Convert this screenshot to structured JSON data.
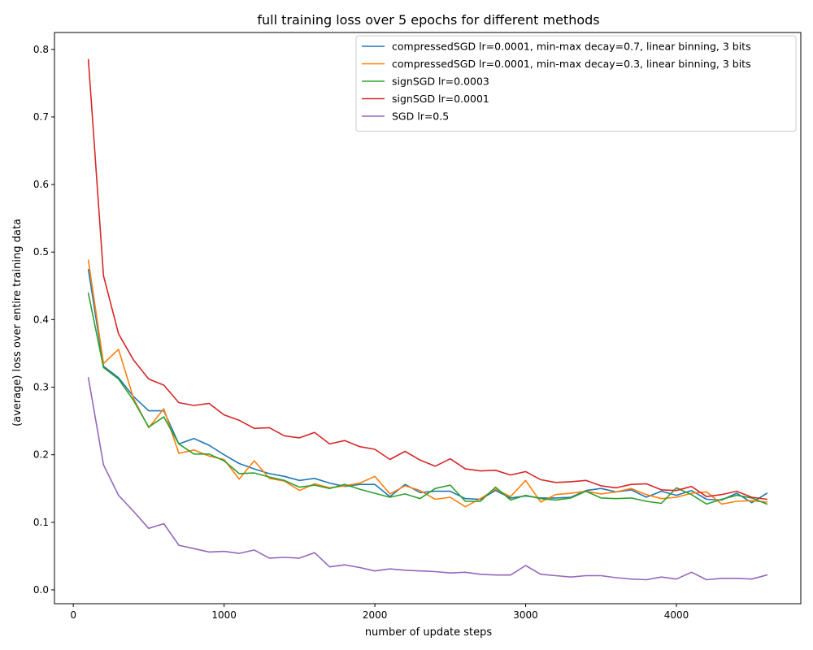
{
  "chart_data": {
    "type": "line",
    "title": "full training loss over 5 epochs for different methods",
    "xlabel": "number of update steps",
    "ylabel": "(average) loss over entire training data",
    "xlim": [
      -125,
      4825
    ],
    "ylim": [
      -0.0205,
      0.825
    ],
    "xticks": [
      0,
      1000,
      2000,
      3000,
      4000
    ],
    "xtick_labels": [
      "0",
      "1000",
      "2000",
      "3000",
      "4000"
    ],
    "yticks": [
      0.0,
      0.1,
      0.2,
      0.3,
      0.4,
      0.5,
      0.6,
      0.7,
      0.8
    ],
    "ytick_labels": [
      "0.0",
      "0.1",
      "0.2",
      "0.3",
      "0.4",
      "0.5",
      "0.6",
      "0.7",
      "0.8"
    ],
    "grid": false,
    "legend_position": "top-right",
    "x": [
      100,
      200,
      300,
      400,
      500,
      600,
      700,
      800,
      900,
      1000,
      1100,
      1200,
      1300,
      1400,
      1500,
      1600,
      1700,
      1800,
      1900,
      2000,
      2100,
      2200,
      2300,
      2400,
      2500,
      2600,
      2700,
      2800,
      2900,
      3000,
      3100,
      3200,
      3300,
      3400,
      3500,
      3600,
      3700,
      3800,
      3900,
      4000,
      4100,
      4200,
      4300,
      4400,
      4500,
      4600
    ],
    "series": [
      {
        "name": "compressedSGD lr=0.0001, min-max decay=0.7, linear binning, 3 bits",
        "color": "#1f77b4",
        "values": [
          0.474,
          0.331,
          0.314,
          0.286,
          0.265,
          0.265,
          0.216,
          0.224,
          0.214,
          0.2,
          0.187,
          0.179,
          0.172,
          0.168,
          0.162,
          0.165,
          0.158,
          0.153,
          0.156,
          0.156,
          0.138,
          0.156,
          0.144,
          0.146,
          0.146,
          0.135,
          0.134,
          0.147,
          0.136,
          0.139,
          0.136,
          0.136,
          0.137,
          0.147,
          0.15,
          0.145,
          0.148,
          0.137,
          0.146,
          0.14,
          0.147,
          0.134,
          0.133,
          0.143,
          0.129,
          0.143
        ]
      },
      {
        "name": "compressedSGD lr=0.0001, min-max decay=0.3, linear binning, 3 bits",
        "color": "#ff7f0e",
        "values": [
          0.488,
          0.335,
          0.356,
          0.283,
          0.24,
          0.268,
          0.202,
          0.207,
          0.198,
          0.193,
          0.164,
          0.191,
          0.165,
          0.161,
          0.147,
          0.157,
          0.151,
          0.154,
          0.158,
          0.168,
          0.142,
          0.154,
          0.147,
          0.134,
          0.137,
          0.123,
          0.135,
          0.149,
          0.138,
          0.162,
          0.13,
          0.141,
          0.143,
          0.146,
          0.142,
          0.145,
          0.15,
          0.141,
          0.135,
          0.137,
          0.143,
          0.145,
          0.127,
          0.131,
          0.132,
          0.13
        ]
      },
      {
        "name": "signSGD lr=0.0003",
        "color": "#2ca02c",
        "values": [
          0.439,
          0.329,
          0.312,
          0.28,
          0.241,
          0.256,
          0.216,
          0.201,
          0.201,
          0.191,
          0.172,
          0.173,
          0.167,
          0.162,
          0.152,
          0.155,
          0.15,
          0.156,
          0.149,
          0.143,
          0.137,
          0.142,
          0.135,
          0.15,
          0.155,
          0.131,
          0.131,
          0.152,
          0.133,
          0.14,
          0.135,
          0.133,
          0.136,
          0.146,
          0.136,
          0.135,
          0.136,
          0.131,
          0.128,
          0.151,
          0.141,
          0.127,
          0.134,
          0.14,
          0.136,
          0.127
        ]
      },
      {
        "name": "signSGD lr=0.0001",
        "color": "#d62728",
        "values": [
          0.785,
          0.465,
          0.379,
          0.34,
          0.312,
          0.303,
          0.277,
          0.273,
          0.276,
          0.259,
          0.251,
          0.239,
          0.24,
          0.228,
          0.225,
          0.233,
          0.216,
          0.221,
          0.212,
          0.208,
          0.193,
          0.205,
          0.192,
          0.183,
          0.194,
          0.179,
          0.176,
          0.177,
          0.17,
          0.175,
          0.163,
          0.159,
          0.16,
          0.162,
          0.154,
          0.151,
          0.156,
          0.157,
          0.148,
          0.147,
          0.153,
          0.138,
          0.141,
          0.146,
          0.137,
          0.134
        ]
      },
      {
        "name": "SGD lr=0.5",
        "color": "#9467bd",
        "values": [
          0.314,
          0.185,
          0.14,
          0.116,
          0.091,
          0.098,
          0.066,
          0.061,
          0.056,
          0.057,
          0.054,
          0.059,
          0.047,
          0.048,
          0.047,
          0.055,
          0.034,
          0.037,
          0.033,
          0.028,
          0.031,
          0.029,
          0.028,
          0.027,
          0.025,
          0.026,
          0.023,
          0.022,
          0.022,
          0.036,
          0.023,
          0.021,
          0.019,
          0.021,
          0.021,
          0.018,
          0.016,
          0.015,
          0.019,
          0.016,
          0.026,
          0.015,
          0.017,
          0.017,
          0.016,
          0.022
        ]
      }
    ]
  }
}
